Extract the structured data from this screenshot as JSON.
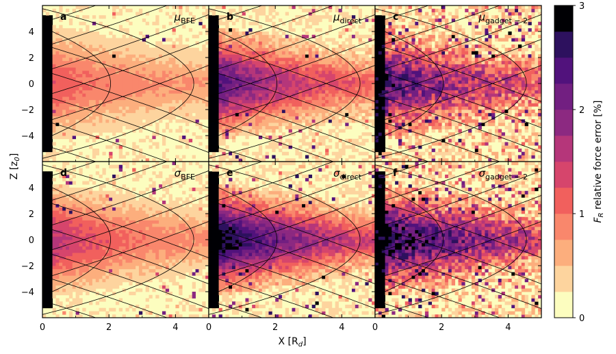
{
  "chart_data": {
    "type": "heatmap",
    "grid": {
      "rows": 2,
      "cols": 3
    },
    "xlabel": "X [R",
    "xlabel_sub": "d",
    "xlabel_end": "]",
    "ylabel": "Z [z",
    "ylabel_sub": "0",
    "ylabel_end": "]",
    "xlim": [
      0,
      5
    ],
    "ylim": [
      -6,
      6
    ],
    "xticks": [
      0,
      2,
      4
    ],
    "yticks": [
      -4,
      -2,
      0,
      2,
      4
    ],
    "colorbar": {
      "label_main": "F",
      "label_sub": "R",
      "label_rest": " relative force error [%]",
      "min": 0,
      "max": 3,
      "ticks": [
        0,
        1,
        2,
        3
      ],
      "bins": 12,
      "colors": [
        "#fcfdbf",
        "#fdd49e",
        "#fcae7d",
        "#f9876c",
        "#f1605d",
        "#d6456c",
        "#b5367a",
        "#8c2981",
        "#721f81",
        "#51127c",
        "#2d115e",
        "#000004"
      ]
    },
    "contours": {
      "description": "iso-density curves of the disc model",
      "tips": [
        2.05,
        4.55
      ],
      "outer_offsets": [
        -3.0,
        -1.0,
        0.9,
        2.8,
        4.7
      ]
    },
    "panels": [
      {
        "letter": "a",
        "symbol": "μ",
        "sub": "BFE",
        "core": 0.55,
        "fall": 0.9,
        "noise": 0.1
      },
      {
        "letter": "b",
        "symbol": "μ",
        "sub": "direct",
        "core": 1.7,
        "fall": 0.55,
        "noise": 0.22
      },
      {
        "letter": "c",
        "symbol": "μ",
        "sub": "gadget − 2",
        "core": 1.75,
        "fall": 0.4,
        "noise": 0.55
      },
      {
        "letter": "d",
        "symbol": "σ",
        "sub": "BFE",
        "core": 0.95,
        "fall": 0.75,
        "noise": 0.12
      },
      {
        "letter": "e",
        "symbol": "σ",
        "sub": "direct",
        "core": 2.3,
        "fall": 0.45,
        "noise": 0.25
      },
      {
        "letter": "f",
        "symbol": "σ",
        "sub": "gadget − 2",
        "core": 2.2,
        "fall": 0.35,
        "noise": 0.55
      }
    ]
  }
}
